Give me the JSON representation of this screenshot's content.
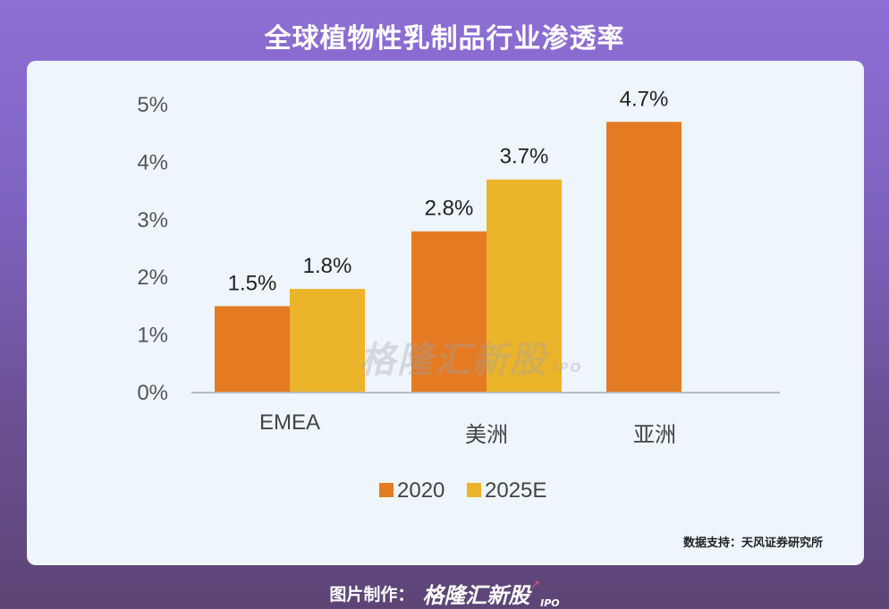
{
  "page": {
    "title": "全球植物性乳制品行业渗透率",
    "source": "数据支持：天风证券研究所",
    "footer_label": "图片制作：",
    "brand": "格隆汇新股",
    "brand_sub": "IPO",
    "watermark": "格隆汇新股",
    "watermark_sub": "IPO"
  },
  "colors": {
    "series_2020": "#e47b22",
    "series_2025": "#ebb42a"
  },
  "chart_data": {
    "type": "bar",
    "title": "全球植物性乳制品行业渗透率",
    "categories": [
      "EMEA",
      "美洲",
      "亚洲"
    ],
    "series": [
      {
        "name": "2020",
        "values": [
          1.5,
          2.8,
          4.7
        ],
        "labels": [
          "1.5%",
          "2.8%",
          "4.7%"
        ]
      },
      {
        "name": "2025E",
        "values": [
          1.8,
          3.7,
          null
        ],
        "labels": [
          "1.8%",
          "3.7%",
          ""
        ]
      }
    ],
    "y_ticks": [
      "0%",
      "1%",
      "2%",
      "3%",
      "4%",
      "5%"
    ],
    "ylim": [
      0,
      5
    ],
    "xlabel": "",
    "ylabel": "",
    "legend": "bottom",
    "grid": false
  }
}
